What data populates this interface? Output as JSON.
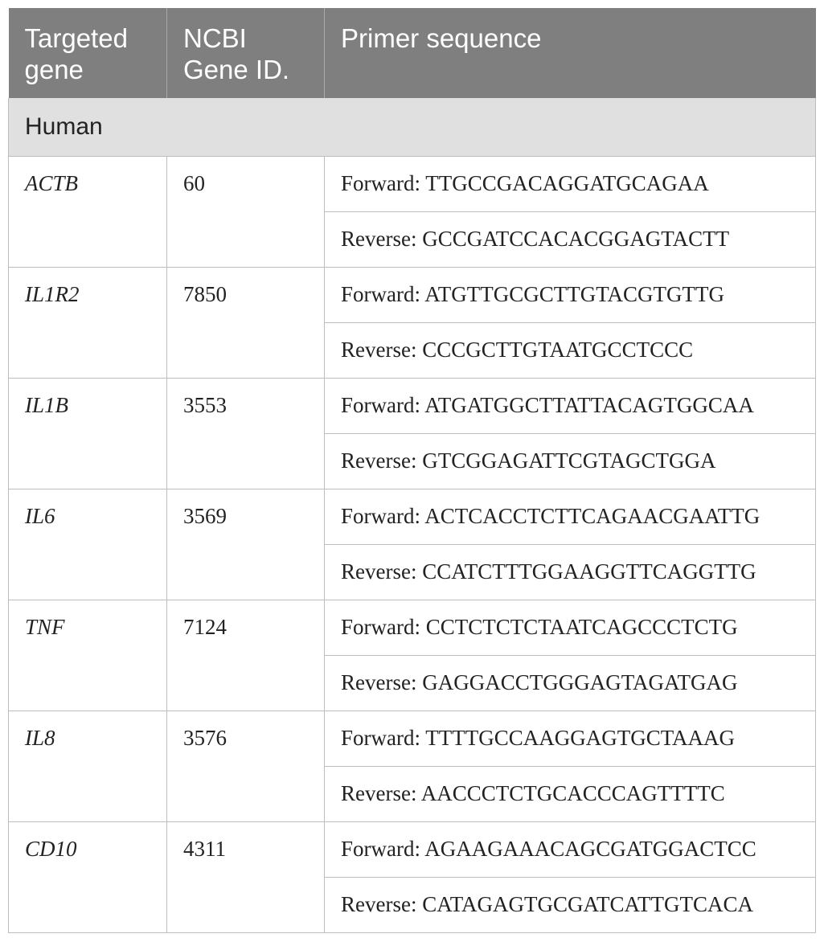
{
  "table": {
    "headers": [
      "Targeted gene",
      "NCBI Gene ID.",
      "Primer sequence"
    ],
    "section": "Human",
    "rows": [
      {
        "gene": "ACTB",
        "gene_id": "60",
        "forward": "Forward: TTGCCGACAGGATGCAGAA",
        "reverse": "Reverse: GCCGATCCACACGGAGTACTT"
      },
      {
        "gene": "IL1R2",
        "gene_id": "7850",
        "forward": "Forward: ATGTTGCGCTTGTACGTGTTG",
        "reverse": "Reverse: CCCGCTTGTAATGCCTCCC"
      },
      {
        "gene": "IL1B",
        "gene_id": "3553",
        "forward": "Forward: ATGATGGCTTATTACAGTGGCAA",
        "reverse": "Reverse: GTCGGAGATTCGTAGCTGGA"
      },
      {
        "gene": "IL6",
        "gene_id": "3569",
        "forward": "Forward: ACTCACCTCTTCAGAACGAATTG",
        "reverse": "Reverse: CCATCTTTGGAAGGTTCAGGTTG"
      },
      {
        "gene": "TNF",
        "gene_id": "7124",
        "forward": "Forward: CCTCTCTCTAATCAGCCCTCTG",
        "reverse": "Reverse: GAGGACCTGGGAGTAGATGAG"
      },
      {
        "gene": "IL8",
        "gene_id": "3576",
        "forward": "Forward: TTTTGCCAAGGAGTGCTAAAG",
        "reverse": "Reverse: AACCCTCTGCACCCAGTTTTC"
      },
      {
        "gene": "CD10",
        "gene_id": "4311",
        "forward": "Forward: AGAAGAAACAGCGATGGACTCC",
        "reverse": "Reverse: CATAGAGTGCGATCATTGTCACA"
      }
    ]
  }
}
